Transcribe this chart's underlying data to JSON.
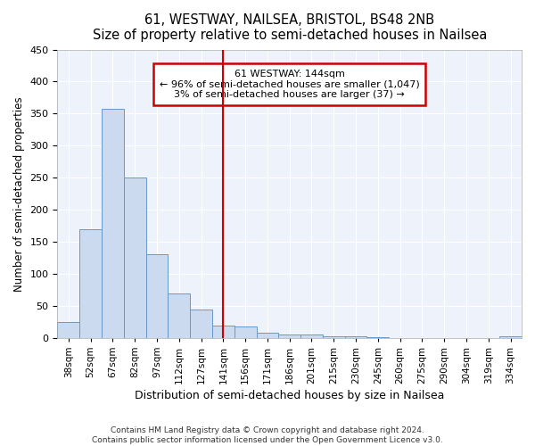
{
  "title": "61, WESTWAY, NAILSEA, BRISTOL, BS48 2NB",
  "subtitle": "Size of property relative to semi-detached houses in Nailsea",
  "xlabel": "Distribution of semi-detached houses by size in Nailsea",
  "ylabel": "Number of semi-detached properties",
  "categories": [
    "38sqm",
    "52sqm",
    "67sqm",
    "82sqm",
    "97sqm",
    "112sqm",
    "127sqm",
    "141sqm",
    "156sqm",
    "171sqm",
    "186sqm",
    "201sqm",
    "215sqm",
    "230sqm",
    "245sqm",
    "260sqm",
    "275sqm",
    "290sqm",
    "304sqm",
    "319sqm",
    "334sqm"
  ],
  "values": [
    25,
    170,
    358,
    250,
    130,
    70,
    45,
    20,
    18,
    8,
    5,
    5,
    3,
    2,
    1,
    0,
    0,
    0,
    0,
    0,
    2
  ],
  "bar_color": "#ccdaf0",
  "bar_edge_color": "#6699cc",
  "property_line_x": 7,
  "annotation_title": "61 WESTWAY: 144sqm",
  "annotation_line1": "← 96% of semi-detached houses are smaller (1,047)",
  "annotation_line2": "3% of semi-detached houses are larger (37) →",
  "annotation_box_color": "#ffffff",
  "annotation_box_edge_color": "#cc0000",
  "vline_color": "#cc0000",
  "ylim": [
    0,
    450
  ],
  "yticks": [
    0,
    50,
    100,
    150,
    200,
    250,
    300,
    350,
    400,
    450
  ],
  "background_color": "#eef2fb",
  "grid_color": "#ffffff",
  "footer_line1": "Contains HM Land Registry data © Crown copyright and database right 2024.",
  "footer_line2": "Contains public sector information licensed under the Open Government Licence v3.0."
}
